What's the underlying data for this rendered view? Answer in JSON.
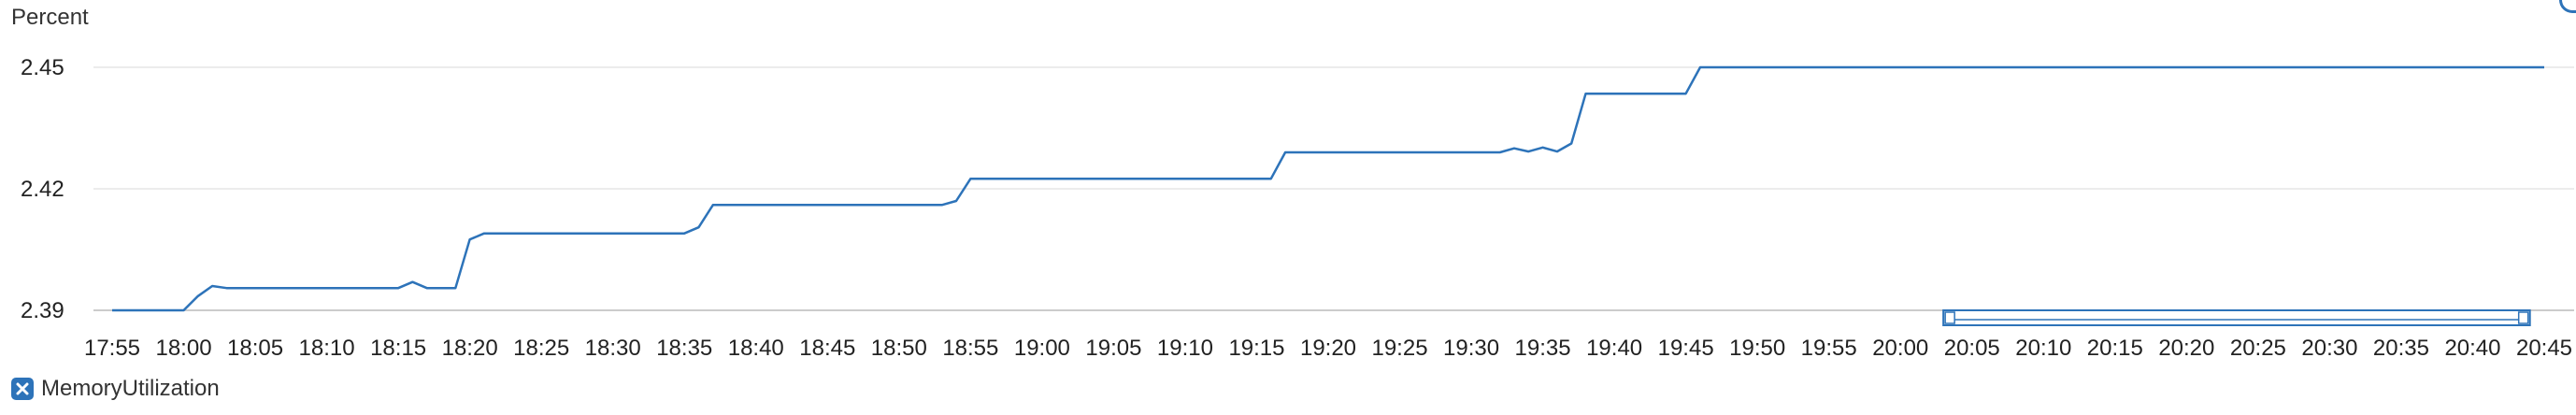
{
  "colors": {
    "series": "#2d73b9",
    "legend_box": "#2d73b9",
    "navigator": "#2d73b9"
  },
  "legend": {
    "label": "MemoryUtilization",
    "icon": "close-x-icon"
  },
  "chart_data": {
    "type": "line",
    "ylabel": "Percent",
    "xlabel": "",
    "title": "",
    "ylim": [
      2.39,
      2.45
    ],
    "yticks": [
      2.39,
      2.42,
      2.45
    ],
    "xlim": [
      "17:55",
      "20:45"
    ],
    "xticks": [
      "17:55",
      "18:00",
      "18:05",
      "18:10",
      "18:15",
      "18:20",
      "18:25",
      "18:30",
      "18:35",
      "18:40",
      "18:45",
      "18:50",
      "18:55",
      "19:00",
      "19:05",
      "19:10",
      "19:15",
      "19:20",
      "19:25",
      "19:30",
      "19:35",
      "19:40",
      "19:45",
      "19:50",
      "19:55",
      "20:00",
      "20:05",
      "20:10",
      "20:15",
      "20:20",
      "20:25",
      "20:30",
      "20:35",
      "20:40",
      "20:45"
    ],
    "grid": true,
    "legend_position": "bottom-left",
    "series": [
      {
        "name": "MemoryUtilization",
        "x": [
          "17:55",
          "18:00",
          "18:01",
          "18:02",
          "18:03",
          "18:05",
          "18:10",
          "18:15",
          "18:16",
          "18:17",
          "18:19",
          "18:20",
          "18:21",
          "18:25",
          "18:30",
          "18:35",
          "18:36",
          "18:37",
          "18:40",
          "18:45",
          "18:50",
          "18:53",
          "18:54",
          "18:55",
          "19:00",
          "19:05",
          "19:10",
          "19:15",
          "19:16",
          "19:17",
          "19:20",
          "19:25",
          "19:30",
          "19:32",
          "19:33",
          "19:34",
          "19:35",
          "19:36",
          "19:37",
          "19:38",
          "19:40",
          "19:45",
          "19:46",
          "20:00",
          "20:45"
        ],
        "values": [
          2.39,
          2.39,
          2.3935,
          2.396,
          2.3955,
          2.3955,
          2.3955,
          2.3955,
          2.397,
          2.3955,
          2.3955,
          2.4075,
          2.409,
          2.409,
          2.409,
          2.409,
          2.4105,
          2.416,
          2.416,
          2.416,
          2.416,
          2.416,
          2.417,
          2.4225,
          2.4225,
          2.4225,
          2.4225,
          2.4225,
          2.4225,
          2.429,
          2.429,
          2.429,
          2.429,
          2.429,
          2.43,
          2.4292,
          2.4302,
          2.4292,
          2.4312,
          2.4435,
          2.4435,
          2.4435,
          2.45,
          2.45,
          2.45
        ]
      }
    ],
    "navigator_range": [
      "20:03",
      "20:44"
    ]
  }
}
